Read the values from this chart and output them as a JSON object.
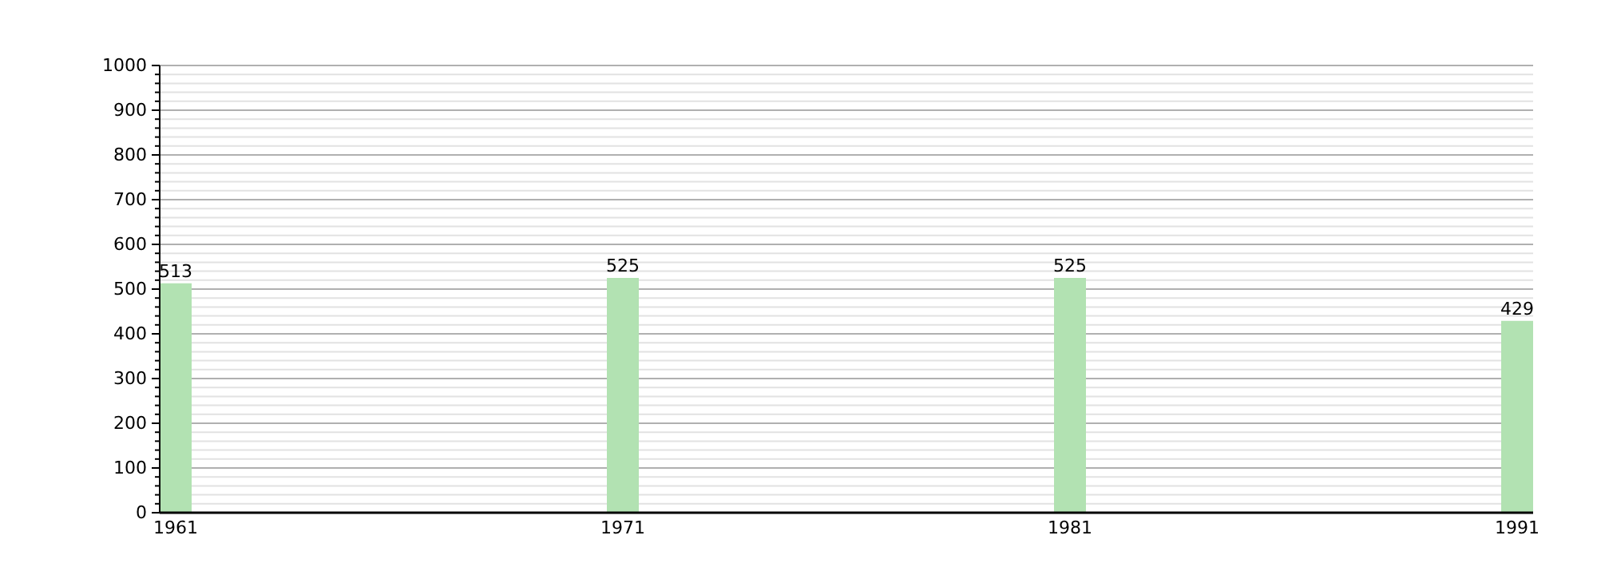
{
  "chart_data": {
    "type": "bar",
    "categories": [
      "1961",
      "1971",
      "1981",
      "1991"
    ],
    "values": [
      513,
      525,
      525,
      429
    ],
    "color": "#b2e2b2",
    "data_labels": true,
    "grid": "y",
    "ylim": [
      0,
      1000
    ],
    "yticks": [
      0,
      {
        "value": 20,
        "label": null
      },
      {
        "value": 40,
        "label": null
      },
      {
        "value": 60,
        "label": null
      },
      {
        "value": 80,
        "label": null
      },
      100,
      {
        "value": 120,
        "label": null
      },
      {
        "value": 140,
        "label": null
      },
      {
        "value": 160,
        "label": null
      },
      {
        "value": 180,
        "label": null
      },
      200,
      {
        "value": 220,
        "label": null
      },
      {
        "value": 240,
        "label": null
      },
      {
        "value": 260,
        "label": null
      },
      {
        "value": 280,
        "label": null
      },
      300,
      {
        "value": 320,
        "label": null
      },
      {
        "value": 340,
        "label": null
      },
      {
        "value": 360,
        "label": null
      },
      {
        "value": 380,
        "label": null
      },
      400,
      {
        "value": 420,
        "label": null
      },
      {
        "value": 440,
        "label": null
      },
      {
        "value": 460,
        "label": null
      },
      {
        "value": 480,
        "label": null
      },
      500,
      {
        "value": 520,
        "label": null
      },
      {
        "value": 540,
        "label": null
      },
      {
        "value": 560,
        "label": null
      },
      {
        "value": 580,
        "label": null
      },
      600,
      {
        "value": 620,
        "label": null
      },
      {
        "value": 640,
        "label": null
      },
      {
        "value": 660,
        "label": null
      },
      {
        "value": 680,
        "label": null
      },
      700,
      {
        "value": 720,
        "label": null
      },
      {
        "value": 740,
        "label": null
      },
      {
        "value": 760,
        "label": null
      },
      {
        "value": 780,
        "label": null
      },
      800,
      {
        "value": 820,
        "label": null
      },
      {
        "value": 840,
        "label": null
      },
      {
        "value": 860,
        "label": null
      },
      {
        "value": 880,
        "label": null
      },
      900,
      {
        "value": 920,
        "label": null
      },
      {
        "value": 940,
        "label": null
      },
      {
        "value": 960,
        "label": null
      },
      {
        "value": 980,
        "label": null
      },
      1000
    ]
  }
}
